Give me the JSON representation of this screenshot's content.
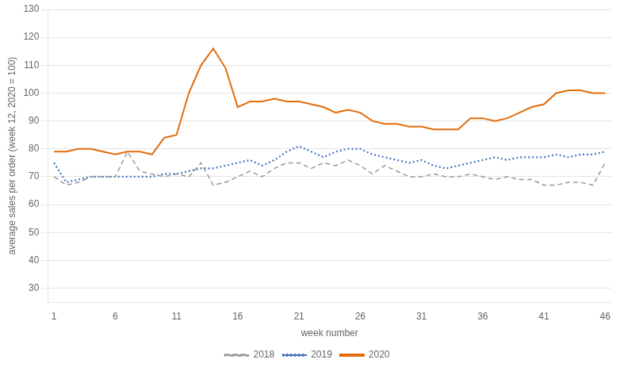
{
  "chart_data": {
    "type": "line",
    "xlabel": "week number",
    "ylabel": "average sales per order (week 12, 2020 = 100)",
    "x": [
      1,
      2,
      3,
      4,
      5,
      6,
      7,
      8,
      9,
      10,
      11,
      12,
      13,
      14,
      15,
      16,
      17,
      18,
      19,
      20,
      21,
      22,
      23,
      24,
      25,
      26,
      27,
      28,
      29,
      30,
      31,
      32,
      33,
      34,
      35,
      36,
      37,
      38,
      39,
      40,
      41,
      42,
      43,
      44,
      45,
      46
    ],
    "series": [
      {
        "name": "2018",
        "color": "#999999",
        "line_style": "dashed",
        "values": [
          70,
          67,
          68,
          70,
          70,
          70,
          79,
          72,
          71,
          70,
          71,
          70,
          75,
          67,
          68,
          70,
          72,
          70,
          73,
          75,
          75,
          73,
          75,
          74,
          76,
          74,
          71,
          74,
          72,
          70,
          70,
          71,
          70,
          70,
          71,
          70,
          69,
          70,
          69,
          69,
          67,
          67,
          68,
          68,
          67,
          75
        ]
      },
      {
        "name": "2019",
        "color": "#4472C4",
        "line_style": "dotted",
        "values": [
          75,
          68,
          69,
          70,
          70,
          70,
          70,
          70,
          70,
          71,
          71,
          72,
          73,
          73,
          74,
          75,
          76,
          74,
          76,
          79,
          81,
          79,
          77,
          79,
          80,
          80,
          78,
          77,
          76,
          75,
          76,
          74,
          73,
          74,
          75,
          76,
          77,
          76,
          77,
          77,
          77,
          78,
          77,
          78,
          78,
          79
        ]
      },
      {
        "name": "2020",
        "color": "#E36C0A",
        "line_style": "solid",
        "values": [
          79,
          79,
          80,
          80,
          79,
          78,
          79,
          79,
          78,
          84,
          85,
          100,
          110,
          116,
          109,
          95,
          97,
          97,
          98,
          97,
          97,
          96,
          95,
          93,
          94,
          93,
          90,
          89,
          89,
          88,
          88,
          87,
          87,
          87,
          91,
          91,
          90,
          91,
          93,
          95,
          96,
          100,
          101,
          101,
          100,
          100
        ]
      }
    ],
    "xlim": [
      0.5,
      46.5
    ],
    "xticks": [
      1,
      6,
      11,
      16,
      21,
      26,
      31,
      36,
      41,
      46
    ],
    "ylim": [
      25,
      130
    ],
    "yticks": [
      30,
      40,
      50,
      60,
      70,
      80,
      90,
      100,
      110,
      120,
      130
    ],
    "grid": "y",
    "legend": "bottom"
  }
}
